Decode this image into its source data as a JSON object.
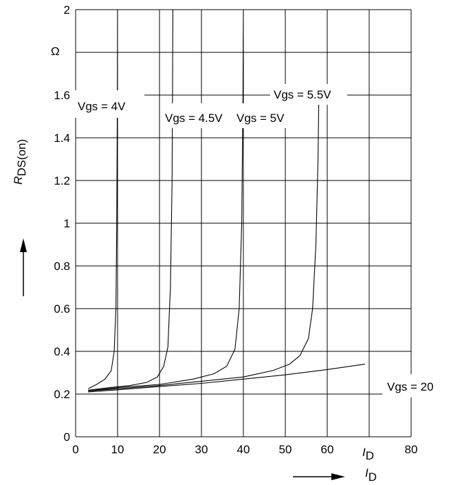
{
  "chart_data": {
    "type": "line",
    "title": "",
    "xlabel": "I_D",
    "ylabel": "R_DS(on)",
    "unit_label": "Ω",
    "xlim": [
      0,
      80
    ],
    "ylim": [
      0,
      2
    ],
    "x_ticks": [
      "0",
      "10",
      "20",
      "30",
      "40",
      "50",
      "60",
      "70",
      "80"
    ],
    "y_ticks": [
      "0",
      "0.2",
      "0.4",
      "0.6",
      "0.8",
      "1",
      "1.2",
      "1.4",
      "1.6",
      "2"
    ],
    "grid": true,
    "x_tick_70_label": "I_D",
    "series": [
      {
        "name": "Vgs = 4V",
        "points": [
          [
            3,
            0.225
          ],
          [
            5,
            0.245
          ],
          [
            7,
            0.27
          ],
          [
            8.5,
            0.31
          ],
          [
            9.2,
            0.4
          ],
          [
            9.6,
            0.6
          ],
          [
            9.8,
            1.0
          ],
          [
            9.95,
            1.6
          ],
          [
            10,
            2.0
          ]
        ]
      },
      {
        "name": "Vgs = 4.5V",
        "points": [
          [
            3,
            0.218
          ],
          [
            8,
            0.23
          ],
          [
            13,
            0.24
          ],
          [
            17,
            0.255
          ],
          [
            19.5,
            0.28
          ],
          [
            21,
            0.33
          ],
          [
            22,
            0.42
          ],
          [
            22.6,
            0.7
          ],
          [
            23,
            1.2
          ],
          [
            23.2,
            2.0
          ]
        ]
      },
      {
        "name": "Vgs = 5V",
        "points": [
          [
            3,
            0.215
          ],
          [
            10,
            0.23
          ],
          [
            20,
            0.245
          ],
          [
            28,
            0.27
          ],
          [
            33,
            0.295
          ],
          [
            36,
            0.33
          ],
          [
            38,
            0.41
          ],
          [
            39,
            0.6
          ],
          [
            39.6,
            1.0
          ],
          [
            39.9,
            1.6
          ],
          [
            40,
            2.0
          ]
        ]
      },
      {
        "name": "Vgs = 5.5V",
        "points": [
          [
            3,
            0.215
          ],
          [
            10,
            0.225
          ],
          [
            20,
            0.24
          ],
          [
            30,
            0.26
          ],
          [
            40,
            0.28
          ],
          [
            47,
            0.31
          ],
          [
            51,
            0.34
          ],
          [
            53.5,
            0.38
          ],
          [
            55.5,
            0.46
          ],
          [
            56.5,
            0.6
          ],
          [
            57.3,
            0.9
          ],
          [
            57.8,
            1.3
          ],
          [
            58,
            1.6
          ]
        ]
      },
      {
        "name": "Vgs = 20",
        "points": [
          [
            3,
            0.21
          ],
          [
            10,
            0.22
          ],
          [
            20,
            0.235
          ],
          [
            30,
            0.25
          ],
          [
            40,
            0.27
          ],
          [
            50,
            0.29
          ],
          [
            60,
            0.315
          ],
          [
            69,
            0.34
          ]
        ]
      }
    ]
  }
}
